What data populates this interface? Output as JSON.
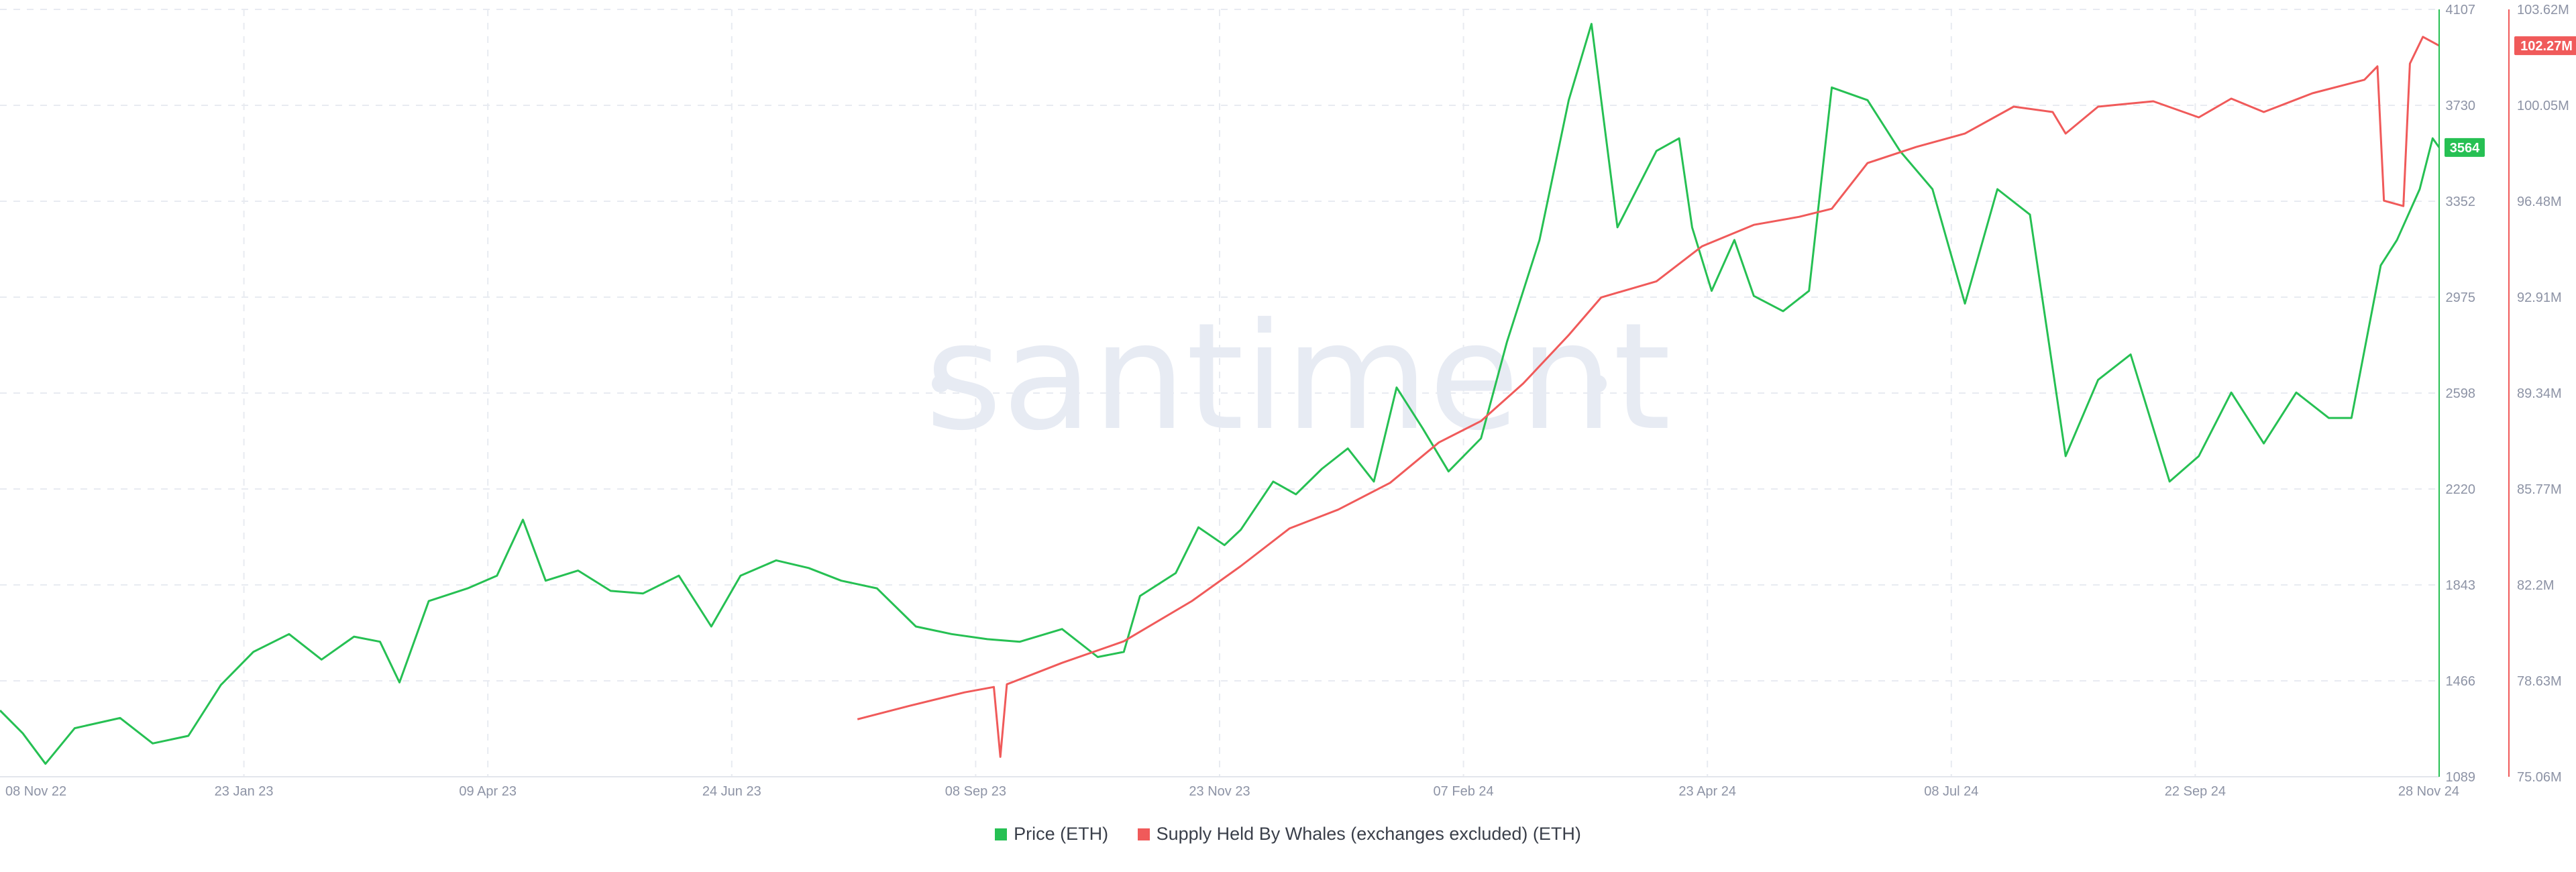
{
  "watermark": "santiment",
  "chart_data": {
    "type": "line",
    "xlim": [
      "2022-11-08",
      "2024-11-28"
    ],
    "x_ticks": [
      "08 Nov 22",
      "23 Jan 23",
      "09 Apr 23",
      "24 Jun 23",
      "08 Sep 23",
      "23 Nov 23",
      "07 Feb 24",
      "23 Apr 24",
      "08 Jul 24",
      "22 Sep 24",
      "28 Nov 24"
    ],
    "left_axis": {
      "ylim": [
        1089,
        4107
      ],
      "ticks": [
        "4107",
        "3730",
        "3352",
        "2975",
        "2598",
        "2220",
        "1843",
        "1466",
        "1089"
      ],
      "current_value_label": "3564",
      "color": "#26c053"
    },
    "right_axis": {
      "ylim": [
        75.06,
        103.62
      ],
      "ticks": [
        "103.62M",
        "100.05M",
        "96.48M",
        "92.91M",
        "89.34M",
        "85.77M",
        "82.2M",
        "78.63M",
        "75.06M"
      ],
      "current_value_label": "102.27M",
      "color": "#f05a5a"
    },
    "grid": true,
    "legend_position": "bottom",
    "series": [
      {
        "name": "Price (ETH)",
        "axis": "left",
        "color": "#26c053",
        "points": [
          [
            "2022-11-08",
            1350
          ],
          [
            "2022-11-15",
            1260
          ],
          [
            "2022-11-22",
            1140
          ],
          [
            "2022-12-01",
            1280
          ],
          [
            "2022-12-15",
            1320
          ],
          [
            "2022-12-25",
            1220
          ],
          [
            "2023-01-05",
            1250
          ],
          [
            "2023-01-15",
            1450
          ],
          [
            "2023-01-25",
            1580
          ],
          [
            "2023-02-05",
            1650
          ],
          [
            "2023-02-15",
            1550
          ],
          [
            "2023-02-25",
            1640
          ],
          [
            "2023-03-05",
            1620
          ],
          [
            "2023-03-11",
            1460
          ],
          [
            "2023-03-20",
            1780
          ],
          [
            "2023-04-01",
            1830
          ],
          [
            "2023-04-10",
            1880
          ],
          [
            "2023-04-18",
            2100
          ],
          [
            "2023-04-25",
            1860
          ],
          [
            "2023-05-05",
            1900
          ],
          [
            "2023-05-15",
            1820
          ],
          [
            "2023-05-25",
            1810
          ],
          [
            "2023-06-05",
            1880
          ],
          [
            "2023-06-15",
            1680
          ],
          [
            "2023-06-24",
            1880
          ],
          [
            "2023-07-05",
            1940
          ],
          [
            "2023-07-15",
            1910
          ],
          [
            "2023-07-25",
            1860
          ],
          [
            "2023-08-05",
            1830
          ],
          [
            "2023-08-17",
            1680
          ],
          [
            "2023-08-28",
            1650
          ],
          [
            "2023-09-08",
            1630
          ],
          [
            "2023-09-18",
            1620
          ],
          [
            "2023-10-01",
            1670
          ],
          [
            "2023-10-12",
            1560
          ],
          [
            "2023-10-20",
            1580
          ],
          [
            "2023-10-25",
            1800
          ],
          [
            "2023-11-05",
            1890
          ],
          [
            "2023-11-12",
            2070
          ],
          [
            "2023-11-20",
            2000
          ],
          [
            "2023-11-25",
            2060
          ],
          [
            "2023-12-05",
            2250
          ],
          [
            "2023-12-12",
            2200
          ],
          [
            "2023-12-20",
            2300
          ],
          [
            "2023-12-28",
            2380
          ],
          [
            "2024-01-05",
            2250
          ],
          [
            "2024-01-12",
            2620
          ],
          [
            "2024-01-20",
            2460
          ],
          [
            "2024-01-28",
            2290
          ],
          [
            "2024-02-07",
            2420
          ],
          [
            "2024-02-15",
            2800
          ],
          [
            "2024-02-25",
            3200
          ],
          [
            "2024-03-05",
            3750
          ],
          [
            "2024-03-12",
            4050
          ],
          [
            "2024-03-20",
            3250
          ],
          [
            "2024-04-01",
            3550
          ],
          [
            "2024-04-08",
            3600
          ],
          [
            "2024-04-12",
            3250
          ],
          [
            "2024-04-18",
            3000
          ],
          [
            "2024-04-25",
            3200
          ],
          [
            "2024-05-01",
            2980
          ],
          [
            "2024-05-10",
            2920
          ],
          [
            "2024-05-18",
            3000
          ],
          [
            "2024-05-25",
            3800
          ],
          [
            "2024-06-05",
            3750
          ],
          [
            "2024-06-15",
            3550
          ],
          [
            "2024-06-25",
            3400
          ],
          [
            "2024-07-05",
            2950
          ],
          [
            "2024-07-15",
            3400
          ],
          [
            "2024-07-25",
            3300
          ],
          [
            "2024-08-05",
            2350
          ],
          [
            "2024-08-15",
            2650
          ],
          [
            "2024-08-25",
            2750
          ],
          [
            "2024-09-06",
            2250
          ],
          [
            "2024-09-15",
            2350
          ],
          [
            "2024-09-25",
            2600
          ],
          [
            "2024-10-05",
            2400
          ],
          [
            "2024-10-15",
            2600
          ],
          [
            "2024-10-25",
            2500
          ],
          [
            "2024-11-01",
            2500
          ],
          [
            "2024-11-10",
            3100
          ],
          [
            "2024-11-15",
            3200
          ],
          [
            "2024-11-22",
            3400
          ],
          [
            "2024-11-26",
            3600
          ],
          [
            "2024-11-28",
            3564
          ]
        ]
      },
      {
        "name": "Supply Held By Whales (exchanges excluded) (ETH)",
        "axis": "right",
        "color": "#f05a5a",
        "points": [
          [
            "2023-07-30",
            77.2
          ],
          [
            "2023-08-15",
            77.7
          ],
          [
            "2023-09-01",
            78.2
          ],
          [
            "2023-09-10",
            78.4
          ],
          [
            "2023-09-12",
            75.8
          ],
          [
            "2023-09-14",
            78.5
          ],
          [
            "2023-10-01",
            79.3
          ],
          [
            "2023-10-20",
            80.1
          ],
          [
            "2023-11-10",
            81.6
          ],
          [
            "2023-11-25",
            82.9
          ],
          [
            "2023-12-10",
            84.3
          ],
          [
            "2023-12-25",
            85.0
          ],
          [
            "2024-01-10",
            86.0
          ],
          [
            "2024-01-25",
            87.5
          ],
          [
            "2024-02-07",
            88.3
          ],
          [
            "2024-02-20",
            89.7
          ],
          [
            "2024-03-05",
            91.5
          ],
          [
            "2024-03-15",
            92.9
          ],
          [
            "2024-04-01",
            93.5
          ],
          [
            "2024-04-15",
            94.8
          ],
          [
            "2024-05-01",
            95.6
          ],
          [
            "2024-05-15",
            95.9
          ],
          [
            "2024-05-25",
            96.2
          ],
          [
            "2024-06-05",
            97.9
          ],
          [
            "2024-06-20",
            98.5
          ],
          [
            "2024-07-05",
            99.0
          ],
          [
            "2024-07-20",
            100.0
          ],
          [
            "2024-08-01",
            99.8
          ],
          [
            "2024-08-05",
            99.0
          ],
          [
            "2024-08-15",
            100.0
          ],
          [
            "2024-09-01",
            100.2
          ],
          [
            "2024-09-15",
            99.6
          ],
          [
            "2024-09-25",
            100.3
          ],
          [
            "2024-10-05",
            99.8
          ],
          [
            "2024-10-20",
            100.5
          ],
          [
            "2024-11-05",
            101.0
          ],
          [
            "2024-11-09",
            101.5
          ],
          [
            "2024-11-11",
            96.5
          ],
          [
            "2024-11-17",
            96.3
          ],
          [
            "2024-11-19",
            101.6
          ],
          [
            "2024-11-23",
            102.6
          ],
          [
            "2024-11-28",
            102.27
          ]
        ]
      }
    ]
  }
}
